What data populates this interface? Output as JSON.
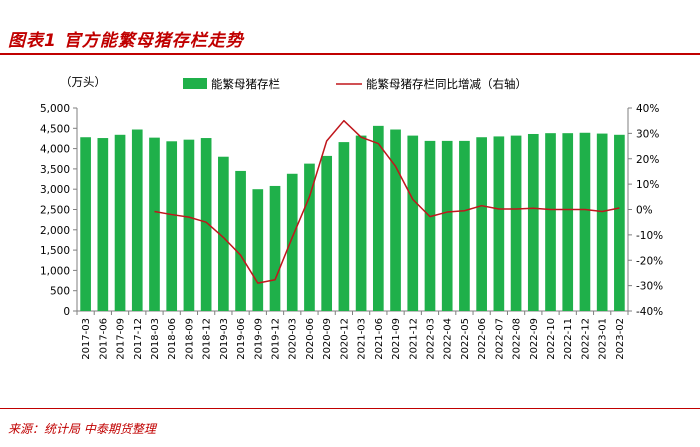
{
  "figure": {
    "title": "图表1  官方能繁母猪存栏走势",
    "source": "来源：统计局 中泰期货整理"
  },
  "chart_data": {
    "type": "bar",
    "title": "",
    "y_unit_label": "（万头）",
    "ylim": [
      0,
      5000
    ],
    "y_ticks": [
      "0",
      "500",
      "1,000",
      "1,500",
      "2,000",
      "2,500",
      "3,000",
      "3,500",
      "4,000",
      "4,500",
      "5,000"
    ],
    "y2lim": [
      -40,
      40
    ],
    "y2_ticks": [
      "-40%",
      "-30%",
      "-20%",
      "-10%",
      "0%",
      "10%",
      "20%",
      "30%",
      "40%"
    ],
    "legend_position": "top",
    "grid": false,
    "colors": {
      "bar": "#1fb04a",
      "line": "#c0161c",
      "axis": "#7f7f7f",
      "frame": "#c00000"
    },
    "categories": [
      "2017-03",
      "2017-06",
      "2017-09",
      "2017-12",
      "2018-03",
      "2018-06",
      "2018-09",
      "2018-12",
      "2019-03",
      "2019-06",
      "2019-09",
      "2019-12",
      "2020-03",
      "2020-06",
      "2020-09",
      "2020-12",
      "2021-03",
      "2021-06",
      "2021-09",
      "2021-12",
      "2022-03",
      "2022-04",
      "2022-05",
      "2022-06",
      "2022-07",
      "2022-08",
      "2022-09",
      "2022-10",
      "2022-11",
      "2022-12",
      "2023-01",
      "2023-02"
    ],
    "series": [
      {
        "name": "能繁母猪存栏",
        "type": "bar",
        "axis": "left",
        "values": [
          4280,
          4260,
          4340,
          4470,
          4270,
          4180,
          4220,
          4260,
          3800,
          3450,
          3000,
          3080,
          3380,
          3630,
          3820,
          4160,
          4320,
          4560,
          4470,
          4320,
          4190,
          4190,
          4190,
          4280,
          4300,
          4320,
          4360,
          4380,
          4380,
          4390,
          4370,
          4340
        ]
      },
      {
        "name": "能繁母猪存栏同比增减（右轴）",
        "type": "line",
        "axis": "right",
        "values": [
          null,
          null,
          null,
          null,
          -0.8,
          -2.0,
          -3.0,
          -5.0,
          -11.0,
          -18.0,
          -29.0,
          -27.7,
          -11.0,
          5.0,
          27.0,
          35.0,
          28.5,
          26.0,
          17.0,
          4.0,
          -2.8,
          -1.0,
          -0.5,
          1.5,
          0.2,
          0.2,
          0.5,
          0.0,
          0.0,
          0.0,
          -0.8,
          0.6
        ]
      }
    ]
  }
}
